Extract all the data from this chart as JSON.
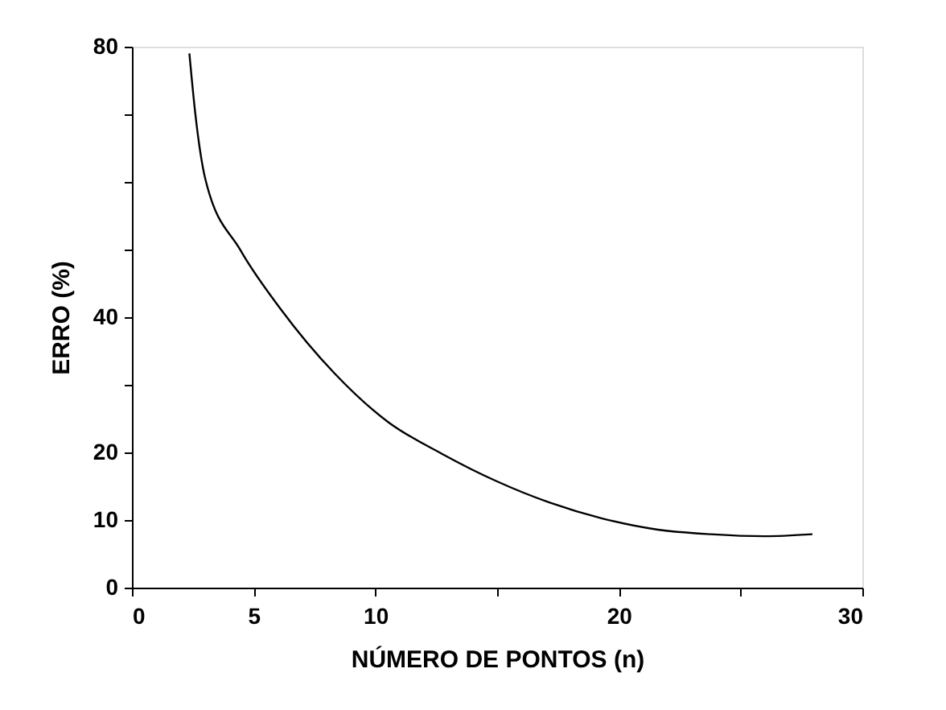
{
  "chart_data": {
    "type": "line",
    "xlabel": "NÚMERO DE PONTOS (n)",
    "ylabel": "ERRO (%)",
    "x": [
      2.36,
      2.6,
      3.03,
      4.46,
      6.11,
      8.32,
      10.52,
      12.73,
      14.94,
      17.14,
      19.35,
      21.55,
      23.76,
      25.97,
      27.95
    ],
    "series": [
      {
        "color": "#000000",
        "values": [
          79.0,
          70.2,
          60.2,
          49.9,
          41.2,
          31.7,
          24.5,
          19.8,
          15.8,
          12.6,
          10.2,
          8.6,
          7.9,
          7.6,
          7.9
        ]
      }
    ],
    "xlim": [
      0,
      30
    ],
    "xticks": [
      0,
      5,
      10,
      {
        "value": 15,
        "label": null
      },
      20,
      {
        "value": 25,
        "label": null
      },
      30
    ],
    "ylim": [
      0,
      80
    ],
    "yticks": [
      0,
      10,
      20,
      {
        "value": 30,
        "label": null
      },
      40,
      {
        "value": 50,
        "label": null
      },
      {
        "value": 60,
        "label": null
      },
      {
        "value": 70,
        "label": null
      },
      80
    ],
    "grid": false,
    "legend": false,
    "marker": "none",
    "line_style": "solid"
  }
}
